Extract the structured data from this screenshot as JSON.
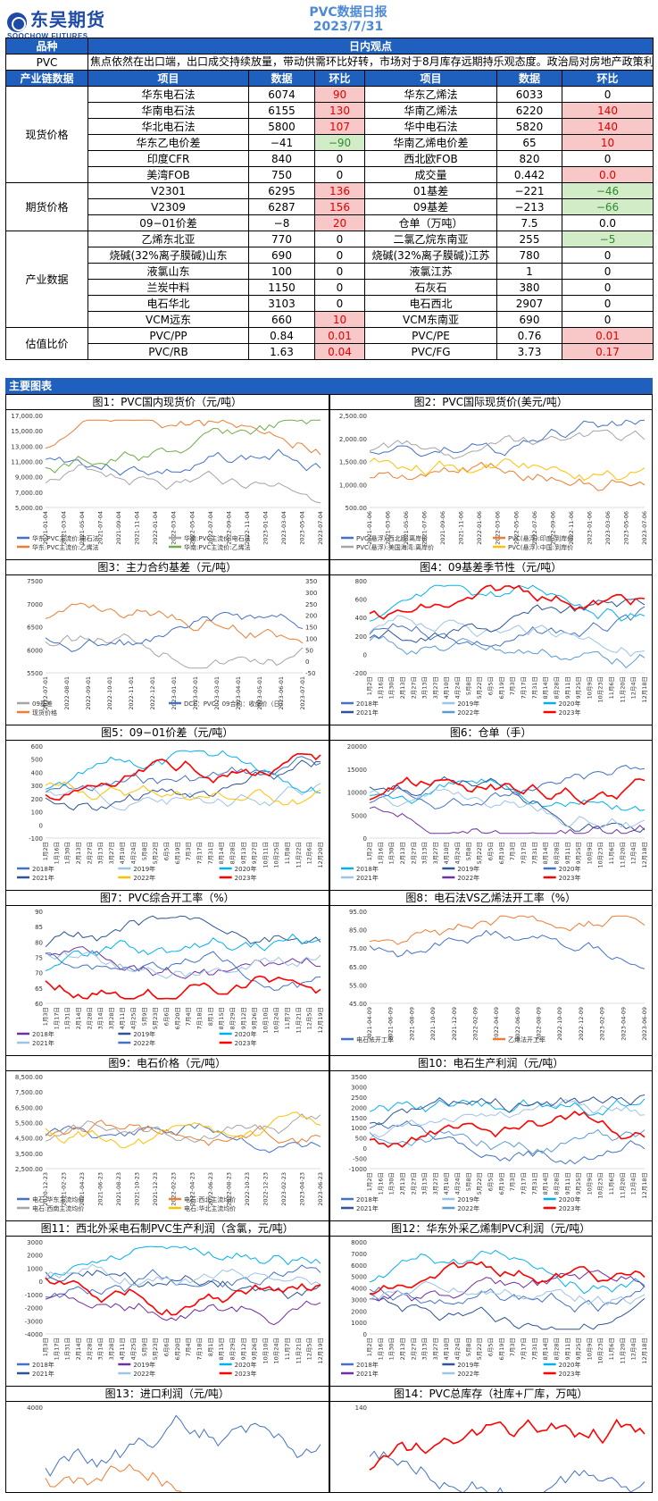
{
  "header": {
    "logo_text": "东吴期货",
    "logo_sub": "SOOCHOW FUTURES",
    "report_title": "PVC数据日报",
    "report_date": "2023/7/31"
  },
  "table": {
    "col_variety": "品种",
    "col_view": "日内观点",
    "variety": "PVC",
    "view_text": "焦点依然在出口端，出口成交持续放量，带动供需环比好转，市场对于8月库存远期持乐观态度。政治局对房地产政策利好在情绪上带动地产相关产品，在去库现实叠加预期双重共振下，走强驱动明显",
    "col_chain": "产业链数据",
    "col_item": "项目",
    "col_data": "数据",
    "col_change": "环比",
    "groups": [
      {
        "label": "现货价格",
        "rows": [
          [
            "华东电石法",
            "6074",
            "90",
            "red",
            "华东乙烯法",
            "6033",
            "0",
            ""
          ],
          [
            "华南电石法",
            "6155",
            "130",
            "red",
            "华南乙烯法",
            "6220",
            "140",
            "red"
          ],
          [
            "华北电石法",
            "5800",
            "107",
            "red",
            "华中电石法",
            "5820",
            "140",
            "red"
          ],
          [
            "华东乙电价差",
            "−41",
            "−90",
            "grn",
            "华南乙烯电价差",
            "65",
            "10",
            "red"
          ],
          [
            "印度CFR",
            "840",
            "0",
            "",
            "西北欧FOB",
            "820",
            "0",
            ""
          ],
          [
            "美湾FOB",
            "750",
            "0",
            "",
            "成交量",
            "0.442",
            "0.0",
            "red"
          ]
        ]
      },
      {
        "label": "期货价格",
        "rows": [
          [
            "V2301",
            "6295",
            "136",
            "red",
            "01基差",
            "−221",
            "−46",
            "grn"
          ],
          [
            "V2309",
            "6287",
            "156",
            "red",
            "09基差",
            "−213",
            "−66",
            "grn"
          ],
          [
            "09−01价差",
            "−8",
            "20",
            "red",
            "仓单（万吨）",
            "7.5",
            "0.0",
            ""
          ]
        ]
      },
      {
        "label": "产业数据",
        "rows": [
          [
            "乙烯东北亚",
            "770",
            "0",
            "",
            "二氯乙烷东南亚",
            "255",
            "−5",
            "grn"
          ],
          [
            "烧碱(32%离子膜碱)山东",
            "690",
            "0",
            "",
            "烧碱(32%离子膜碱)江苏",
            "780",
            "0",
            ""
          ],
          [
            "液氯山东",
            "100",
            "0",
            "",
            "液氯江苏",
            "1",
            "0",
            ""
          ],
          [
            "兰炭中料",
            "1150",
            "0",
            "",
            "石灰石",
            "380",
            "0",
            ""
          ],
          [
            "电石华北",
            "3103",
            "0",
            "",
            "电石西北",
            "2907",
            "0",
            ""
          ],
          [
            "VCM远东",
            "660",
            "10",
            "red",
            "VCM东南亚",
            "690",
            "0",
            ""
          ]
        ]
      },
      {
        "label": "估值比价",
        "rows": [
          [
            "PVC/PP",
            "0.84",
            "0.01",
            "red",
            "PVC/PE",
            "0.76",
            "0.01",
            "red"
          ],
          [
            "PVC/RB",
            "1.63",
            "0.04",
            "red",
            "PVC/FG",
            "3.73",
            "0.17",
            "red"
          ]
        ]
      }
    ]
  },
  "charts_section_title": "主要图表",
  "charts": [
    {
      "title": "图1：PVC国内现货价（元/吨）",
      "yticks": [
        "17,000.00",
        "15,000.00",
        "13,000.00",
        "11,000.00",
        "9,000.00",
        "7,000.00",
        "5,000.00"
      ],
      "xticks": [
        "2021-01-04",
        "2021-03-04",
        "2021-05-04",
        "2021-07-04",
        "2021-09-04",
        "2021-11-04",
        "2022-01-04",
        "2022-03-04",
        "2022-05-04",
        "2022-07-04",
        "2022-09-04",
        "2022-11-04",
        "2023-01-04",
        "2023-03-04",
        "2023-05-04",
        "2023-07-04"
      ],
      "legend": [
        "华东:PVC主流价:电石法",
        "华南:PVC主流价:电石法",
        "华东:PVC主流价:乙烯法",
        "华南:PVC主流价:乙烯法"
      ],
      "colors": [
        "#4472c4",
        "#a5a5a5",
        "#ed7d31",
        "#70ad47"
      ]
    },
    {
      "title": "图2：PVC国际现货价(美元/吨）",
      "yticks": [
        "2,500.00",
        "2,000.00",
        "1,500.00",
        "1,000.00",
        "500.00"
      ],
      "xticks": [
        "2021-01-06",
        "2021-03-06",
        "2021-05-06",
        "2021-07-06",
        "2021-09-06",
        "2021-11-06",
        "2022-01-06",
        "2022-03-06",
        "2022-05-06",
        "2022-07-06",
        "2022-09-06",
        "2022-11-06",
        "2023-01-06",
        "2023-03-06",
        "2023-05-06",
        "2023-07-06"
      ],
      "legend": [
        "PVC(悬浮):西北欧:离岸价",
        "PVC(悬浮):印度:到岸价",
        "PVC(悬浮):美国海湾:离岸价",
        "PVC(悬浮):中国:到岸价"
      ],
      "colors": [
        "#4472c4",
        "#ed7d31",
        "#a5a5a5",
        "#ffc000"
      ]
    },
    {
      "title": "图3：主力合约基差（元/吨）",
      "yticks": [
        "7500",
        "7000",
        "6500",
        "6000",
        "5500"
      ],
      "y2ticks": [
        "350",
        "300",
        "250",
        "200",
        "150",
        "100",
        "50",
        "0",
        "-50"
      ],
      "xticks": [
        "2022-07-01",
        "2022-08-01",
        "2022-09-01",
        "2022-10-01",
        "2022-11-01",
        "2022-12-01",
        "2023-01-01",
        "2023-02-01",
        "2023-03-01",
        "2023-04-01",
        "2023-05-01",
        "2023-06-01",
        "2023-07-01"
      ],
      "legend": [
        "09基差",
        "DCE：PVC：09合约：收盘价（日）",
        "现货价格"
      ],
      "colors": [
        "#a5a5a5",
        "#4472c4",
        "#ed7d31"
      ]
    },
    {
      "title": "图4：09基差季节性（元/吨）",
      "yticks": [
        "800",
        "600",
        "400",
        "200",
        "0",
        "-200"
      ],
      "xticks": [
        "1月2日",
        "1月16日",
        "1月30日",
        "2月13日",
        "2月27日",
        "3月13日",
        "3月27日",
        "4月10日",
        "4月24日",
        "5月8日",
        "5月22日",
        "6月5日",
        "6月19日",
        "7月3日",
        "7月17日",
        "7月31日",
        "8月14日",
        "8月28日",
        "9月11日",
        "9月25日",
        "10月9日",
        "10月23日",
        "11月6日",
        "11月20日",
        "12月4日",
        "12月18日"
      ],
      "legend": [
        "2018年",
        "2019年",
        "2020年",
        "2021年",
        "2022年",
        "2023年"
      ],
      "colors": [
        "#4472c4",
        "#9dc3e6",
        "#00b0f0",
        "#2f5597",
        "#5b9bd5",
        "#ff0000"
      ]
    },
    {
      "title": "图5：09−01价差（元/吨）",
      "yticks": [
        "600",
        "500",
        "400",
        "300",
        "200",
        "100",
        "0",
        "-100"
      ],
      "xticks": [
        "1月2日",
        "1月16日",
        "1月30日",
        "2月13日",
        "2月27日",
        "3月13日",
        "3月27日",
        "4月10日",
        "4月24日",
        "5月8日",
        "5月22日",
        "6月5日",
        "6月19日",
        "7月3日",
        "7月17日",
        "7月31日",
        "8月14日",
        "8月28日",
        "9月13日",
        "9月27日",
        "10月11日",
        "10月25日",
        "11月8日",
        "11月22日",
        "12月6日",
        "12月20日"
      ],
      "legend": [
        "2018年",
        "2019年",
        "2020年",
        "2021年",
        "2022年",
        "2023年"
      ],
      "colors": [
        "#4472c4",
        "#9dc3e6",
        "#00b0f0",
        "#2f5597",
        "#ffc000",
        "#ff0000"
      ]
    },
    {
      "title": "图6：仓单（手）",
      "yticks": [
        "20000",
        "15000",
        "10000",
        "5000",
        "0"
      ],
      "xticks": [
        "1月2日",
        "1月16日",
        "1月30日",
        "2月13日",
        "2月27日",
        "3月13日",
        "3月27日",
        "4月10日",
        "4月24日",
        "5月8日",
        "5月22日",
        "6月5日",
        "6月19日",
        "7月3日",
        "7月17日",
        "7月31日",
        "8月14日",
        "8月28日",
        "9月11日",
        "9月25日",
        "10月9日",
        "10月23日",
        "11月6日",
        "11月20日",
        "12月4日",
        "12月18日"
      ],
      "legend": [
        "2018年",
        "2019年",
        "2020年",
        "2021年",
        "2022年",
        "2023年"
      ],
      "colors": [
        "#00b0f0",
        "#2f5597",
        "#4472c4",
        "#9dc3e6",
        "#7030a0",
        "#ff0000"
      ]
    },
    {
      "title": "图7：PVC综合开工率（%）",
      "yticks": [
        "90",
        "85",
        "80",
        "75",
        "70",
        "65",
        "60"
      ],
      "xticks": [
        "1月3日",
        "1月17日",
        "1月31日",
        "2月14日",
        "2月28日",
        "3月14日",
        "3月28日",
        "4月11日",
        "4月25日",
        "5月9日",
        "5月23日",
        "6月6日",
        "6月20日",
        "7月4日",
        "7月18日",
        "8月1日",
        "8月15日",
        "8月29日",
        "9月12日",
        "9月26日",
        "10月10日",
        "10月24日",
        "11月7日",
        "11月21日",
        "12月5日",
        "12月19日"
      ],
      "legend": [
        "2018年",
        "2019年",
        "2020年",
        "2021年",
        "2022年",
        "2023年"
      ],
      "colors": [
        "#7030a0",
        "#2f5597",
        "#00b0f0",
        "#9dc3e6",
        "#4472c4",
        "#ff0000"
      ]
    },
    {
      "title": "图8：电石法VS乙烯法开工率（%）",
      "yticks": [
        "95.00",
        "85.00",
        "75.00",
        "65.00",
        "55.00",
        "45.00"
      ],
      "xticks": [
        "2021-04-09",
        "2021-06-09",
        "2021-08-09",
        "2021-10-09",
        "2021-12-09",
        "2022-02-09",
        "2022-04-09",
        "2022-06-09",
        "2022-08-09",
        "2022-10-09",
        "2022-12-09",
        "2023-02-09",
        "2023-04-09",
        "2023-06-09"
      ],
      "legend": [
        "电石法开工率",
        "乙烯法开工率"
      ],
      "colors": [
        "#4472c4",
        "#ed7d31"
      ]
    },
    {
      "title": "图9：电石价格（元/吨）",
      "yticks": [
        "8,500.00",
        "7,500.00",
        "6,500.00",
        "5,500.00",
        "4,500.00",
        "3,500.00",
        "2,500.00"
      ],
      "xticks": [
        "2020-12-23",
        "2021-02-23",
        "2021-04-23",
        "2021-06-23",
        "2021-08-23",
        "2021-10-23",
        "2021-12-23",
        "2022-02-23",
        "2022-04-23",
        "2022-06-23",
        "2022-08-23",
        "2022-10-23",
        "2022-12-23",
        "2023-02-23",
        "2023-04-23",
        "2023-06-23"
      ],
      "legend": [
        "电石:华东主流均价",
        "电石:西北主流均价",
        "电石:西南主流均价",
        "电石:华北主流均价"
      ],
      "colors": [
        "#4472c4",
        "#ed7d31",
        "#a5a5a5",
        "#ffc000"
      ]
    },
    {
      "title": "图10：电石生产利润（元/吨）",
      "yticks": [
        "3500",
        "3000",
        "2500",
        "2000",
        "1500",
        "1000",
        "500",
        "0",
        "-500",
        "-1000"
      ],
      "xticks": [
        "1月2日",
        "1月16日",
        "1月30日",
        "2月13日",
        "2月27日",
        "3月13日",
        "3月27日",
        "4月10日",
        "4月24日",
        "5月8日",
        "5月22日",
        "6月5日",
        "6月19日",
        "7月3日",
        "7月17日",
        "7月31日",
        "8月14日",
        "8月28日",
        "9月11日",
        "9月25日",
        "10月9日",
        "10月23日",
        "11月6日",
        "11月20日",
        "12月4日",
        "12月18日"
      ],
      "legend": [
        "2018年",
        "2019年",
        "2020年",
        "2021年",
        "2022年",
        "2023年"
      ],
      "colors": [
        "#4472c4",
        "#9dc3e6",
        "#00b0f0",
        "#2f5597",
        "#5b9bd5",
        "#ff0000"
      ]
    },
    {
      "title": "图11：西北外采电石制PVC生产利润（含氯，元/吨）",
      "yticks": [
        "3000",
        "2000",
        "1000",
        "0",
        "-1000",
        "-2000",
        "-3000",
        "-4000"
      ],
      "xticks": [
        "1月3日",
        "1月17日",
        "1月31日",
        "2月14日",
        "2月28日",
        "3月14日",
        "3月28日",
        "4月11日",
        "4月25日",
        "5月9日",
        "5月23日",
        "6月6日",
        "6月20日",
        "7月4日",
        "7月18日",
        "8月1日",
        "8月15日",
        "8月29日",
        "9月12日",
        "9月26日",
        "10月10日",
        "10月24日",
        "11月7日",
        "11月21日",
        "12月5日",
        "12月19日"
      ],
      "legend": [
        "2018年",
        "2019年",
        "2020年",
        "2021年",
        "2022年",
        "2023年"
      ],
      "colors": [
        "#4472c4",
        "#7030a0",
        "#00b0f0",
        "#2f5597",
        "#9dc3e6",
        "#ff0000"
      ]
    },
    {
      "title": "图12：华东外采乙烯制PVC利润（元/吨）",
      "yticks": [
        "8000",
        "7000",
        "6000",
        "5000",
        "4000",
        "3000",
        "2000",
        "1000",
        "0"
      ],
      "xticks": [
        "1月2日",
        "1月16日",
        "1月30日",
        "2月13日",
        "2月27日",
        "3月13日",
        "3月27日",
        "4月10日",
        "4月24日",
        "5月8日",
        "5月22日",
        "6月5日",
        "6月19日",
        "7月3日",
        "7月17日",
        "7月31日",
        "8月14日",
        "8月28日",
        "9月11日",
        "9月25日",
        "10月9日",
        "10月23日",
        "11月6日",
        "11月20日",
        "12月4日",
        "12月18日"
      ],
      "legend": [
        "2018年",
        "2019年",
        "2020年",
        "2021年",
        "2022年",
        "2023年"
      ],
      "colors": [
        "#4472c4",
        "#2f5597",
        "#00b0f0",
        "#7030a0",
        "#9dc3e6",
        "#ff0000"
      ]
    },
    {
      "title": "图13：进口利润（元/吨）",
      "yticks": [
        "4000",
        "3000"
      ],
      "xticks": [],
      "legend": [],
      "colors": [
        "#4472c4",
        "#ed7d31"
      ]
    },
    {
      "title": "图14：PVC总库存（社库+厂库，万吨）",
      "yticks": [
        "140",
        "120"
      ],
      "xticks": [],
      "legend": [],
      "colors": [
        "#4472c4",
        "#ff0000"
      ]
    }
  ]
}
